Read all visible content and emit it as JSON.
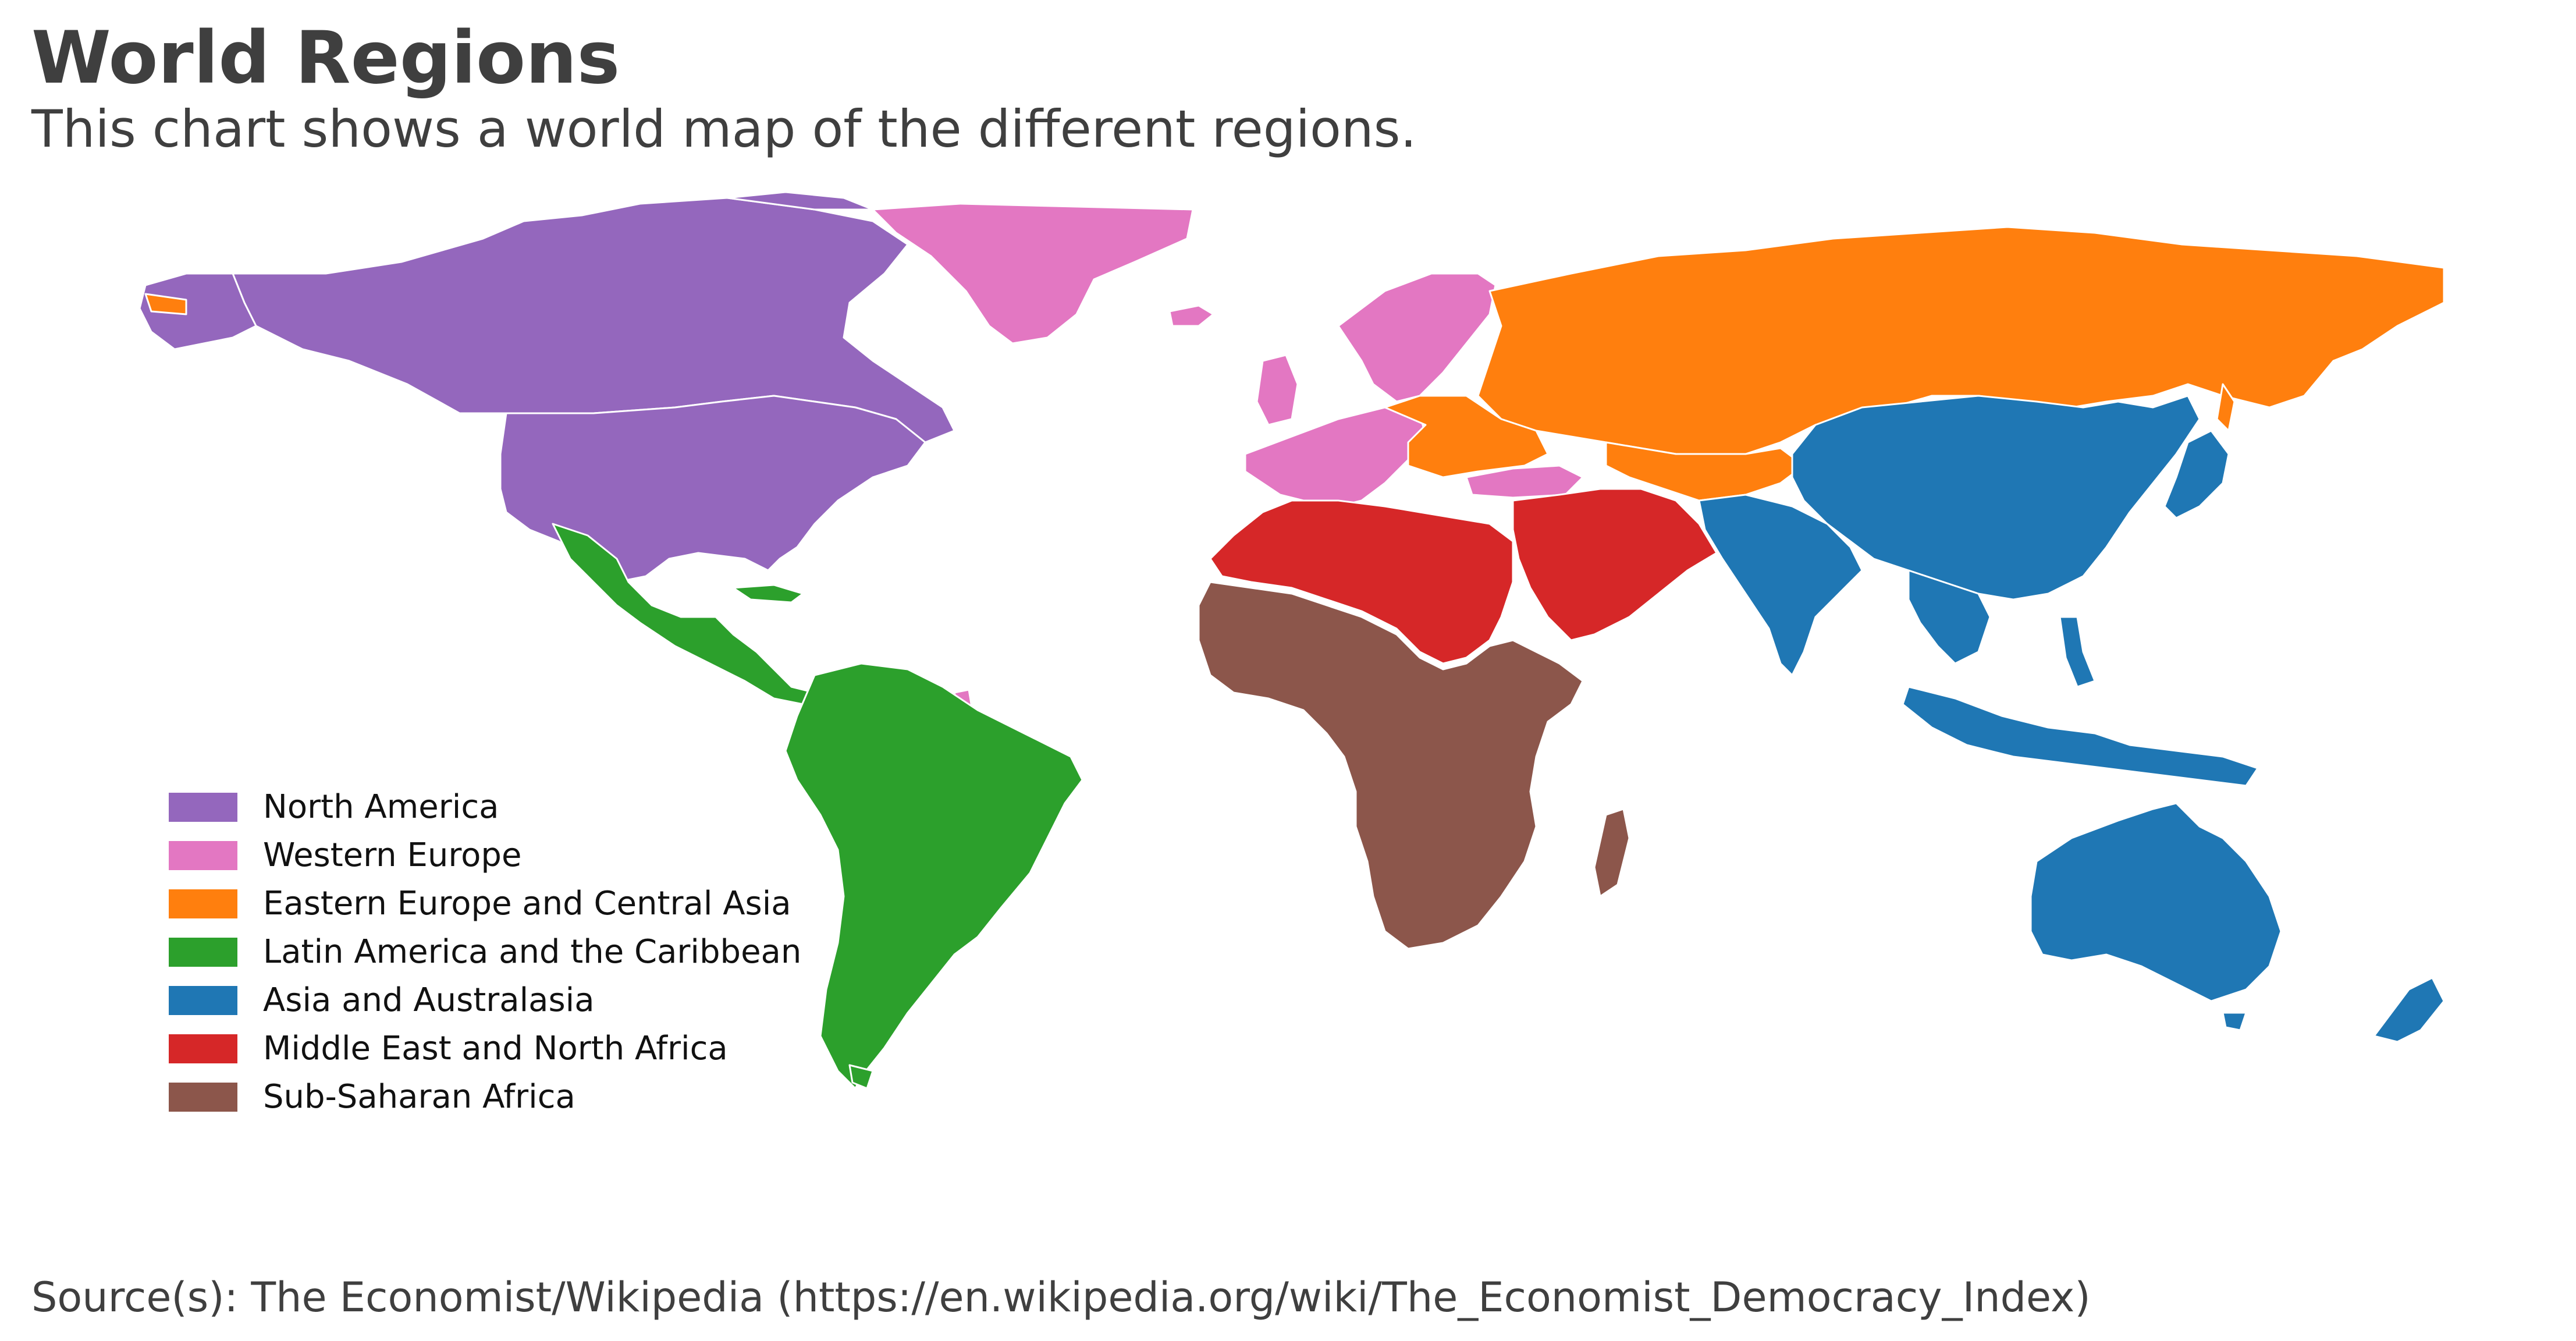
{
  "title": "World Regions",
  "subtitle": "This chart shows a world map of the different regions.",
  "source": "Source(s): The Economist/Wikipedia (https://en.wikipedia.org/wiki/The_Economist_Democracy_Index)",
  "chart_data": {
    "type": "map",
    "regions": [
      {
        "name": "North America",
        "color": "#9467bd"
      },
      {
        "name": "Western Europe",
        "color": "#e377c2"
      },
      {
        "name": "Eastern Europe and Central Asia",
        "color": "#ff7f0e"
      },
      {
        "name": "Latin America and the Caribbean",
        "color": "#2ca02c"
      },
      {
        "name": "Asia and Australasia",
        "color": "#1f77b4"
      },
      {
        "name": "Middle East and North Africa",
        "color": "#d62728"
      },
      {
        "name": "Sub-Saharan Africa",
        "color": "#8c564b"
      }
    ],
    "legend_position": "lower-left",
    "border_color": "#ffffff"
  }
}
